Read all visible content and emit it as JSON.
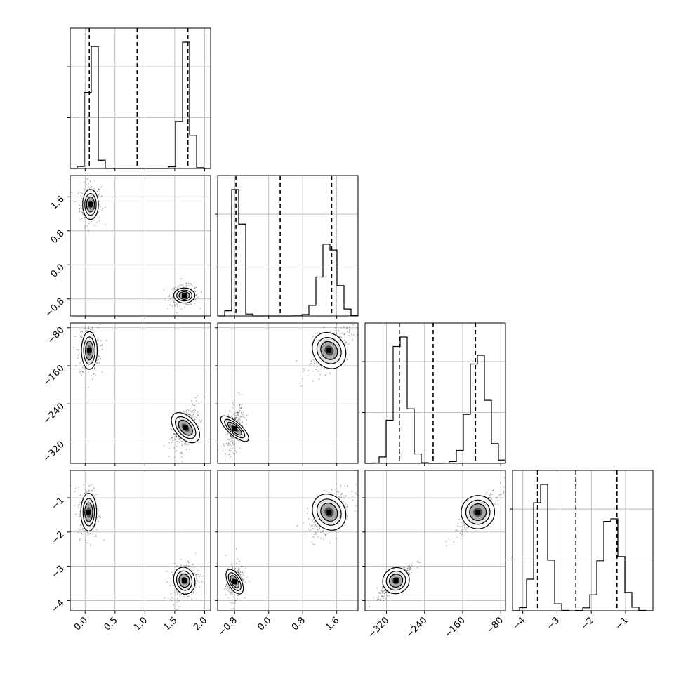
{
  "chart_data": {
    "type": "corner",
    "grid": true,
    "parameters": [
      {
        "range": [
          -0.25,
          2.1
        ],
        "ticks": [
          "0.0",
          "0.5",
          "1.0",
          "1.5",
          "2.0"
        ],
        "tick_values": [
          0,
          0.5,
          1.0,
          1.5,
          2.0
        ],
        "quantiles": [
          0.07,
          0.87,
          1.72
        ],
        "modes": [
          {
            "mean": 0.12,
            "sd": 0.06,
            "weight": 0.5
          },
          {
            "mean": 1.68,
            "sd": 0.07,
            "weight": 0.5
          }
        ]
      },
      {
        "range": [
          -1.2,
          2.1
        ],
        "ticks": [
          "−0.8",
          "0.0",
          "0.8",
          "1.6"
        ],
        "tick_values": [
          -0.8,
          0.0,
          0.8,
          1.6
        ],
        "quantiles": [
          -0.77,
          0.27,
          1.48
        ],
        "modes": [
          {
            "mean": 1.42,
            "sd": 0.18,
            "weight": 0.5
          },
          {
            "mean": -0.72,
            "sd": 0.08,
            "weight": 0.5
          }
        ]
      },
      {
        "range": [
          -365,
          -70
        ],
        "ticks": [
          "−320",
          "−240",
          "−160",
          "−80"
        ],
        "tick_values": [
          -320,
          -240,
          -160,
          -80
        ],
        "quantiles": [
          -293,
          -222,
          -133
        ],
        "modes": [
          {
            "mean": -127,
            "sd": 17,
            "weight": 0.5
          },
          {
            "mean": -290,
            "sd": 14,
            "weight": 0.5
          }
        ]
      },
      {
        "range": [
          -4.3,
          -0.2
        ],
        "ticks": [
          "−4",
          "−3",
          "−2",
          "−1"
        ],
        "tick_values": [
          -4,
          -3,
          -2,
          -1
        ],
        "quantiles": [
          -3.57,
          -2.45,
          -1.25
        ],
        "modes": [
          {
            "mean": -1.42,
            "sd": 0.25,
            "weight": 0.5
          },
          {
            "mean": -3.45,
            "sd": 0.18,
            "weight": 0.5
          }
        ]
      }
    ],
    "pairs": [
      {
        "row": 1,
        "col": 0,
        "centers": [
          [
            0.09,
            1.42
          ],
          [
            1.66,
            -0.72
          ]
        ],
        "spreads": [
          [
            0.06,
            0.16
          ],
          [
            0.08,
            0.08
          ]
        ],
        "tilt": [
          0,
          0
        ]
      },
      {
        "row": 2,
        "col": 0,
        "centers": [
          [
            0.07,
            -128
          ],
          [
            1.68,
            -290
          ]
        ],
        "spreads": [
          [
            0.06,
            18
          ],
          [
            0.08,
            17
          ]
        ],
        "tilt": [
          0,
          0.6
        ]
      },
      {
        "row": 2,
        "col": 1,
        "centers": [
          [
            -0.8,
            -292
          ],
          [
            1.42,
            -128
          ]
        ],
        "spreads": [
          [
            0.07,
            17
          ],
          [
            0.17,
            18
          ]
        ],
        "tilt": [
          0.5,
          0.6
        ]
      },
      {
        "row": 3,
        "col": 0,
        "centers": [
          [
            0.06,
            -1.42
          ],
          [
            1.66,
            -3.42
          ]
        ],
        "spreads": [
          [
            0.06,
            0.25
          ],
          [
            0.08,
            0.18
          ]
        ],
        "tilt": [
          0,
          0.2
        ]
      },
      {
        "row": 3,
        "col": 1,
        "centers": [
          [
            -0.8,
            -3.45
          ],
          [
            1.42,
            -1.42
          ]
        ],
        "spreads": [
          [
            0.07,
            0.18
          ],
          [
            0.17,
            0.25
          ]
        ],
        "tilt": [
          0.3,
          0.6
        ]
      },
      {
        "row": 3,
        "col": 2,
        "centers": [
          [
            -300,
            -3.42
          ],
          [
            -128,
            -1.42
          ]
        ],
        "spreads": [
          [
            13,
            0.17
          ],
          [
            16,
            0.22
          ]
        ],
        "tilt": [
          0.9,
          0.9
        ]
      }
    ]
  }
}
